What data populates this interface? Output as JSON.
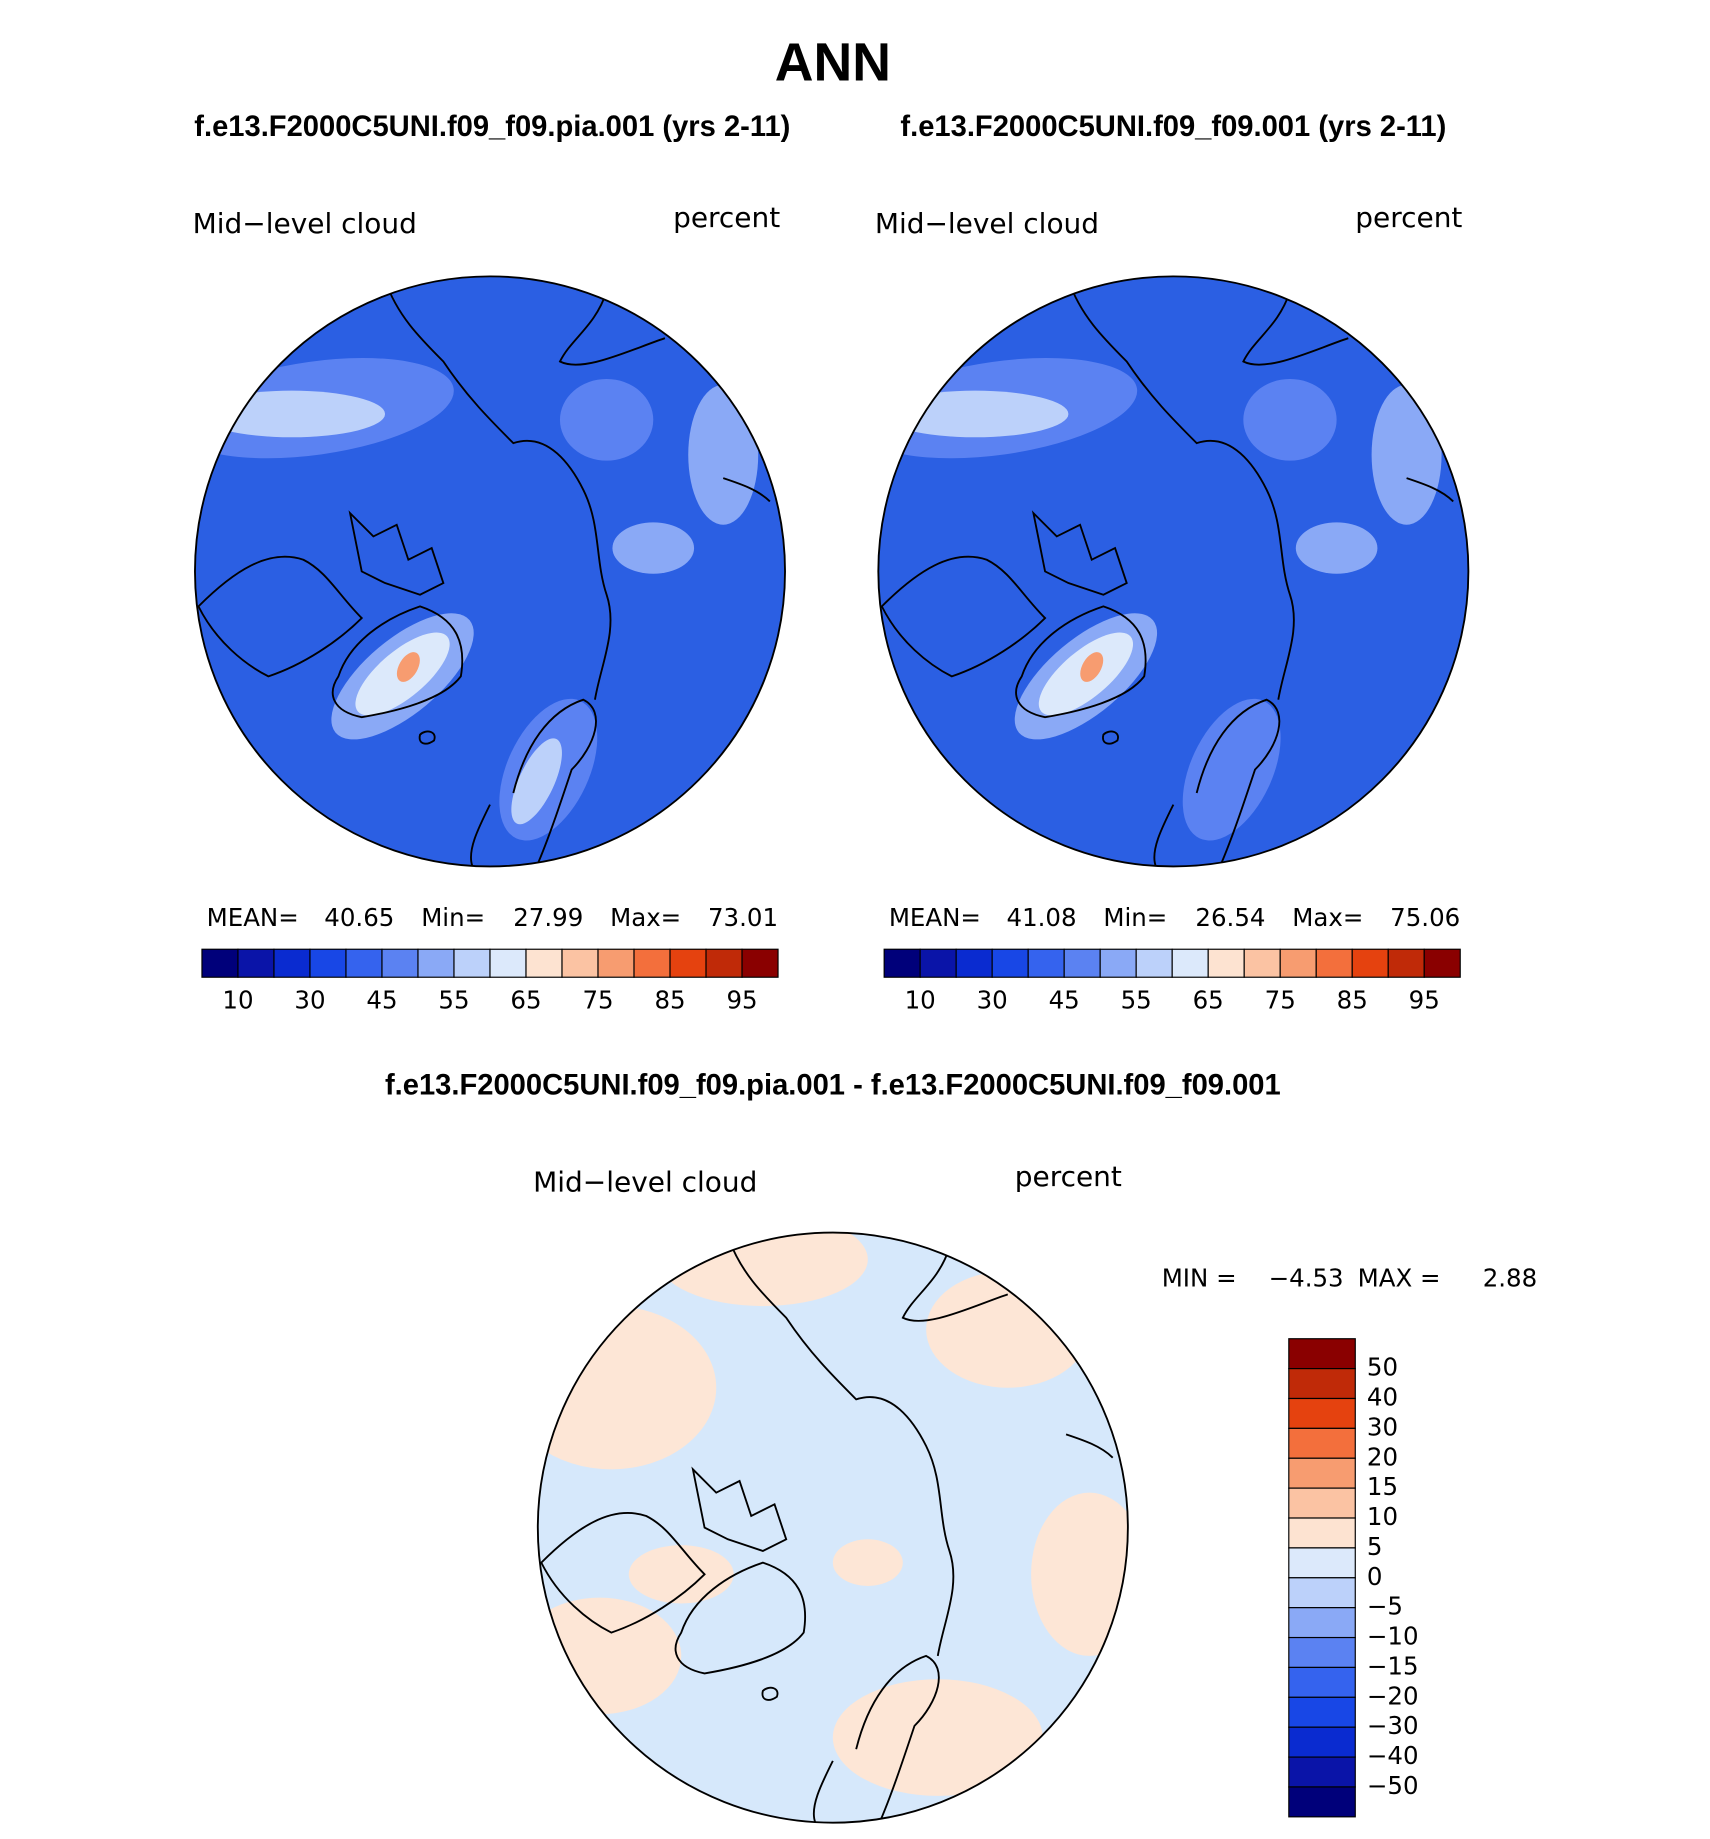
{
  "title": "ANN",
  "panels": [
    {
      "case": "f.e13.F2000C5UNI.f09_f09.pia.001 (yrs 2-11)",
      "field": "Mid−level cloud",
      "units": "percent",
      "stats": [
        {
          "label": "MEAN=",
          "value": "40.65"
        },
        {
          "label": "Min=",
          "value": "27.99"
        },
        {
          "label": "Max=",
          "value": "73.01"
        }
      ],
      "colorbar": {
        "colors": [
          "#00007a",
          "#0a14a8",
          "#0a2bd0",
          "#1847e6",
          "#3563ee",
          "#5b82f2",
          "#8aa9f6",
          "#bcd1fa",
          "#dce9fb",
          "#fde3d1",
          "#fbc3a3",
          "#f79c70",
          "#f36f3c",
          "#e5420f",
          "#c02a08",
          "#8a0000"
        ],
        "labels": [
          "10",
          "30",
          "45",
          "55",
          "65",
          "75",
          "85",
          "95"
        ]
      }
    },
    {
      "case": "f.e13.F2000C5UNI.f09_f09.001 (yrs 2-11)",
      "field": "Mid−level cloud",
      "units": "percent",
      "stats": [
        {
          "label": "MEAN=",
          "value": "41.08"
        },
        {
          "label": "Min=",
          "value": "26.54"
        },
        {
          "label": "Max=",
          "value": "75.06"
        }
      ],
      "colorbar": {
        "colors": [
          "#00007a",
          "#0a14a8",
          "#0a2bd0",
          "#1847e6",
          "#3563ee",
          "#5b82f2",
          "#8aa9f6",
          "#bcd1fa",
          "#dce9fb",
          "#fde3d1",
          "#fbc3a3",
          "#f79c70",
          "#f36f3c",
          "#e5420f",
          "#c02a08",
          "#8a0000"
        ],
        "labels": [
          "10",
          "30",
          "45",
          "55",
          "65",
          "75",
          "85",
          "95"
        ]
      }
    }
  ],
  "difference": {
    "title": "f.e13.F2000C5UNI.f09_f09.pia.001 - f.e13.F2000C5UNI.f09_f09.001",
    "field": "Mid−level cloud",
    "units": "percent",
    "stats": [
      {
        "label": "MIN =",
        "value": "−4.53"
      },
      {
        "label": "MAX =",
        "value": "2.88"
      }
    ],
    "colorbar": {
      "colors": [
        "#8a0000",
        "#c02a08",
        "#e5420f",
        "#f36f3c",
        "#f79c70",
        "#fbc3a3",
        "#fde3d1",
        "#dce9fb",
        "#bcd1fa",
        "#8aa9f6",
        "#5b82f2",
        "#3563ee",
        "#1847e6",
        "#0a2bd0",
        "#0a14a8",
        "#00007a"
      ],
      "labels": [
        "50",
        "40",
        "30",
        "20",
        "15",
        "10",
        "5",
        "0",
        "−5",
        "−10",
        "−15",
        "−20",
        "−30",
        "−40",
        "−50"
      ]
    }
  }
}
